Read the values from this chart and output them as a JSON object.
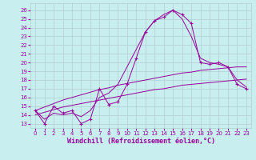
{
  "xlabel": "Windchill (Refroidissement éolien,°C)",
  "hours": [
    0,
    1,
    2,
    3,
    4,
    5,
    6,
    7,
    8,
    9,
    10,
    11,
    12,
    13,
    14,
    15,
    16,
    17,
    18,
    19,
    20,
    21,
    22,
    23
  ],
  "windchill": [
    14.5,
    13.0,
    15.0,
    14.2,
    14.5,
    13.0,
    13.5,
    17.0,
    15.2,
    15.5,
    17.5,
    20.5,
    23.5,
    24.8,
    25.2,
    26.0,
    25.5,
    24.5,
    20.0,
    19.8,
    20.0,
    19.5,
    17.5,
    17.0
  ],
  "smooth_main": [
    14.5,
    13.5,
    14.2,
    14.0,
    14.2,
    13.8,
    14.5,
    16.0,
    16.5,
    17.5,
    19.5,
    21.5,
    23.5,
    24.8,
    25.5,
    26.0,
    25.0,
    23.0,
    20.5,
    20.0,
    19.8,
    19.5,
    18.0,
    17.2
  ],
  "trend_high": [
    14.5,
    14.9,
    15.3,
    15.7,
    16.0,
    16.3,
    16.6,
    16.9,
    17.1,
    17.4,
    17.6,
    17.8,
    18.0,
    18.2,
    18.4,
    18.6,
    18.8,
    18.9,
    19.1,
    19.2,
    19.3,
    19.4,
    19.5,
    19.5
  ],
  "trend_low": [
    14.0,
    14.3,
    14.6,
    14.9,
    15.1,
    15.3,
    15.5,
    15.7,
    15.9,
    16.1,
    16.3,
    16.5,
    16.7,
    16.9,
    17.0,
    17.2,
    17.4,
    17.5,
    17.6,
    17.7,
    17.8,
    17.9,
    18.0,
    18.1
  ],
  "line_color": "#990099",
  "bg_color": "#c8eef0",
  "grid_color": "#b0cdd0",
  "ylim": [
    12.5,
    26.8
  ],
  "xlim": [
    -0.5,
    23.5
  ],
  "yticks": [
    13,
    14,
    15,
    16,
    17,
    18,
    19,
    20,
    21,
    22,
    23,
    24,
    25,
    26
  ],
  "xticks": [
    0,
    1,
    2,
    3,
    4,
    5,
    6,
    7,
    8,
    9,
    10,
    11,
    12,
    13,
    14,
    15,
    16,
    17,
    18,
    19,
    20,
    21,
    22,
    23
  ],
  "tick_fontsize": 5,
  "xlabel_fontsize": 6
}
